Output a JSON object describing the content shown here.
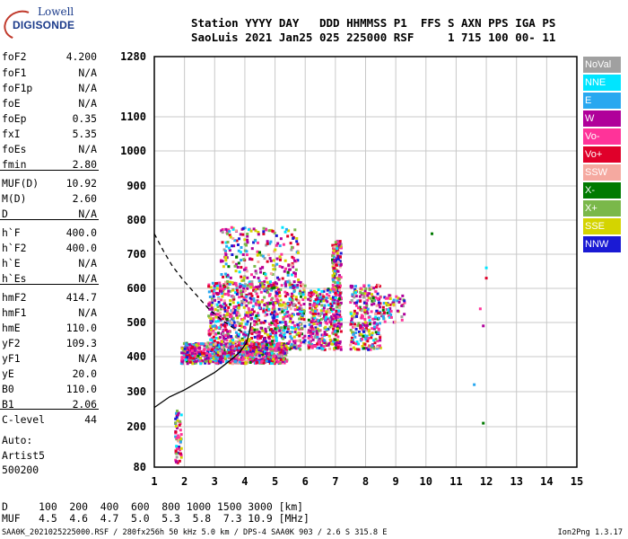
{
  "logo": {
    "line1": "Lowell",
    "line2": "DIGISONDE"
  },
  "header": {
    "line1": "Station YYYY DAY   DDD HHMMSS P1  FFS S AXN PPS IGA PS",
    "line2": "SaoLuis 2021 Jan25 025 225000 RSF     1 715 100 00- 11"
  },
  "params": [
    {
      "k": "foF2",
      "v": "4.200"
    },
    {
      "k": "foF1",
      "v": "N/A"
    },
    {
      "k": "foF1p",
      "v": "N/A"
    },
    {
      "k": "foE",
      "v": "N/A"
    },
    {
      "k": "foEp",
      "v": "0.35"
    },
    {
      "k": "fxI",
      "v": "5.35"
    },
    {
      "k": "foEs",
      "v": "N/A"
    },
    {
      "k": "fmin",
      "v": "2.80"
    },
    {
      "k": "MUF(D)",
      "v": "10.92"
    },
    {
      "k": "M(D)",
      "v": "2.60"
    },
    {
      "k": "D",
      "v": "N/A"
    },
    {
      "k": "h`F",
      "v": "400.0"
    },
    {
      "k": "h`F2",
      "v": "400.0"
    },
    {
      "k": "h`E",
      "v": "N/A"
    },
    {
      "k": "h`Es",
      "v": "N/A"
    },
    {
      "k": "hmF2",
      "v": "414.7"
    },
    {
      "k": "hmF1",
      "v": "N/A"
    },
    {
      "k": "hmE",
      "v": "110.0"
    },
    {
      "k": "yF2",
      "v": "109.3"
    },
    {
      "k": "yF1",
      "v": "N/A"
    },
    {
      "k": "yE",
      "v": "20.0"
    },
    {
      "k": "B0",
      "v": "110.0"
    },
    {
      "k": "B1",
      "v": "2.06"
    },
    {
      "k": "C-level",
      "v": "44"
    }
  ],
  "auto": {
    "line1": "Auto:",
    "line2": "Artist5",
    "line3": "500200"
  },
  "bottom": {
    "d_line": "D     100  200  400  600  800 1000 1500 3000 [km]",
    "muf_line": "MUF   4.5  4.6  4.7  5.0  5.3  5.8  7.3 10.9 [MHz]"
  },
  "footer": {
    "left": "SAA0K_2021025225000.RSF / 280fx256h 50 kHz 5.0 km / DPS-4 SAA0K 903 / 2.6 S 315.8 E",
    "right": "Ion2Png 1.3.17"
  },
  "legend": [
    {
      "label": "NoVal",
      "color": "#a0a0a0"
    },
    {
      "label": "NNE",
      "color": "#00e5ff"
    },
    {
      "label": "E",
      "color": "#29a8f0"
    },
    {
      "label": "W",
      "color": "#b0009a"
    },
    {
      "label": "Vo-",
      "color": "#ff3399"
    },
    {
      "label": "Vo+",
      "color": "#e0002a"
    },
    {
      "label": "SSW",
      "color": "#f5a9a0"
    },
    {
      "label": "X-",
      "color": "#007a00"
    },
    {
      "label": "X+",
      "color": "#7ab84a"
    },
    {
      "label": "SSE",
      "color": "#d4d400"
    },
    {
      "label": "NNW",
      "color": "#1a1ad4"
    }
  ],
  "chart_data": {
    "type": "scatter",
    "xlabel": "",
    "ylabel": "",
    "xlim": [
      1,
      15
    ],
    "ylim": [
      80,
      1280
    ],
    "x_ticks": [
      1,
      2,
      3,
      4,
      5,
      6,
      7,
      8,
      9,
      10,
      11,
      12,
      13,
      14,
      15
    ],
    "y_ticks": [
      80,
      200,
      300,
      400,
      500,
      600,
      700,
      800,
      900,
      1000,
      1100,
      1280
    ],
    "grid": true,
    "echo_clusters": [
      {
        "x_range": [
          1.9,
          5.4
        ],
        "y_range": [
          380,
          440
        ],
        "density": "high"
      },
      {
        "x_range": [
          2.8,
          6.0
        ],
        "y_range": [
          420,
          620
        ],
        "density": "high"
      },
      {
        "x_range": [
          3.2,
          5.8
        ],
        "y_range": [
          600,
          780
        ],
        "density": "medium"
      },
      {
        "x_range": [
          6.1,
          6.9
        ],
        "y_range": [
          420,
          600
        ],
        "density": "medium"
      },
      {
        "x_range": [
          6.9,
          7.2
        ],
        "y_range": [
          420,
          740
        ],
        "density": "medium"
      },
      {
        "x_range": [
          7.5,
          8.5
        ],
        "y_range": [
          420,
          610
        ],
        "density": "medium"
      },
      {
        "x_range": [
          8.5,
          9.3
        ],
        "y_range": [
          500,
          580
        ],
        "density": "low"
      },
      {
        "x_range": [
          1.7,
          1.9
        ],
        "y_range": [
          90,
          250
        ],
        "density": "low"
      }
    ],
    "isolated_points": [
      {
        "x": 10.2,
        "y": 760,
        "color": "#007a00"
      },
      {
        "x": 11.8,
        "y": 540,
        "color": "#ff3399"
      },
      {
        "x": 12.0,
        "y": 660,
        "color": "#00e5ff"
      },
      {
        "x": 11.9,
        "y": 210,
        "color": "#007a00"
      },
      {
        "x": 11.6,
        "y": 320,
        "color": "#29a8f0"
      },
      {
        "x": 11.9,
        "y": 490,
        "color": "#b0009a"
      },
      {
        "x": 12.0,
        "y": 630,
        "color": "#e0002a"
      }
    ],
    "profile_solid": [
      [
        1.0,
        255
      ],
      [
        1.5,
        285
      ],
      [
        2.0,
        305
      ],
      [
        2.5,
        330
      ],
      [
        3.0,
        355
      ],
      [
        3.3,
        375
      ],
      [
        3.6,
        395
      ],
      [
        3.85,
        415
      ],
      [
        4.05,
        440
      ],
      [
        4.15,
        470
      ],
      [
        4.2,
        500
      ]
    ],
    "profile_dashed": [
      [
        1.0,
        760
      ],
      [
        1.3,
        710
      ],
      [
        1.6,
        665
      ],
      [
        2.0,
        620
      ],
      [
        2.4,
        580
      ],
      [
        2.8,
        540
      ],
      [
        3.2,
        510
      ],
      [
        3.6,
        485
      ],
      [
        4.0,
        470
      ]
    ]
  }
}
